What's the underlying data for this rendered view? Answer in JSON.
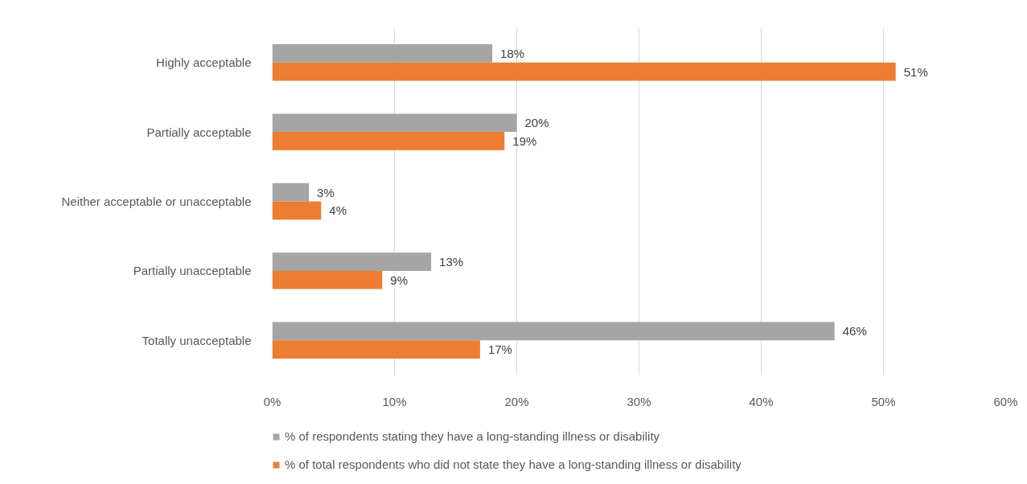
{
  "chart_data": {
    "type": "bar",
    "orientation": "horizontal",
    "categories": [
      "Highly acceptable",
      "Partially acceptable",
      "Neither acceptable or unacceptable",
      "Partially unacceptable",
      "Totally unacceptable"
    ],
    "series": [
      {
        "name": "% of respondents stating they have a long-standing illness or disability",
        "color": "#a5a5a5",
        "values": [
          18,
          20,
          3,
          13,
          46
        ],
        "value_labels": [
          "18%",
          "20%",
          "3%",
          "13%",
          "46%"
        ]
      },
      {
        "name": "% of total respondents who did not state they have a long-standing illness or disability",
        "color": "#ed7d31",
        "values": [
          51,
          19,
          4,
          9,
          17
        ],
        "value_labels": [
          "51%",
          "19%",
          "4%",
          "9%",
          "17%"
        ]
      }
    ],
    "xlim": [
      0,
      60
    ],
    "xticks": [
      {
        "value": 0,
        "label": "0%"
      },
      {
        "value": 10,
        "label": "10%"
      },
      {
        "value": 20,
        "label": "20%"
      },
      {
        "value": 30,
        "label": "30%"
      },
      {
        "value": 40,
        "label": "40%"
      },
      {
        "value": 50,
        "label": "50%"
      },
      {
        "value": 60,
        "label": "60%"
      }
    ],
    "grid": "x",
    "legend": "bottom"
  }
}
